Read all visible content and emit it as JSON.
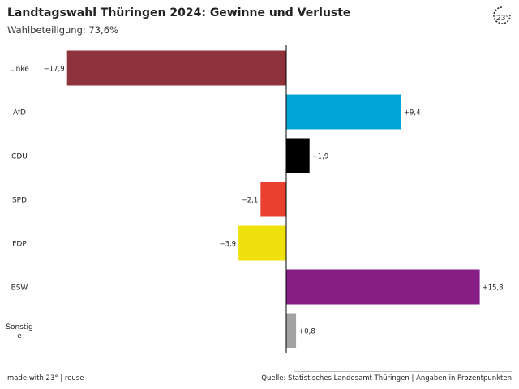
{
  "header": {
    "title": "Landtagswahl Thüringen 2024: Gewinne und Verluste",
    "subtitle": "Wahlbeteiligung: 73,6%"
  },
  "logo": {
    "icon": "brand-23-degrees-logo",
    "text": "23°"
  },
  "footer": {
    "credit": "made with 23° | reuse",
    "source": "Quelle: Statistisches Landesamt Thüringen | Angaben in Prozentpunkten"
  },
  "chart_data": {
    "type": "bar",
    "orientation": "horizontal",
    "title": "Landtagswahl Thüringen 2024: Gewinne und Verluste",
    "subtitle": "Wahlbeteiligung: 73,6%",
    "xlabel": "",
    "ylabel": "",
    "xlim": [
      -17.9,
      15.8
    ],
    "grid": false,
    "categories": [
      "Linke",
      "AfD",
      "CDU",
      "SPD",
      "FDP",
      "BSW",
      "Sonstige"
    ],
    "category_labels": [
      [
        "Linke"
      ],
      [
        "AfD"
      ],
      [
        "CDU"
      ],
      [
        "SPD"
      ],
      [
        "FDP"
      ],
      [
        "BSW"
      ],
      [
        "Sonstig",
        "e"
      ]
    ],
    "values": [
      -17.9,
      9.4,
      1.9,
      -2.1,
      -3.9,
      15.8,
      0.8
    ],
    "value_labels": [
      "−17,9",
      "+9,4",
      "+1,9",
      "−2,1",
      "−3,9",
      "+15,8",
      "+0,8"
    ],
    "colors": [
      "#8e323b",
      "#00a5d6",
      "#000000",
      "#e8412f",
      "#efe10c",
      "#861e85",
      "#a2a2a2"
    ]
  }
}
